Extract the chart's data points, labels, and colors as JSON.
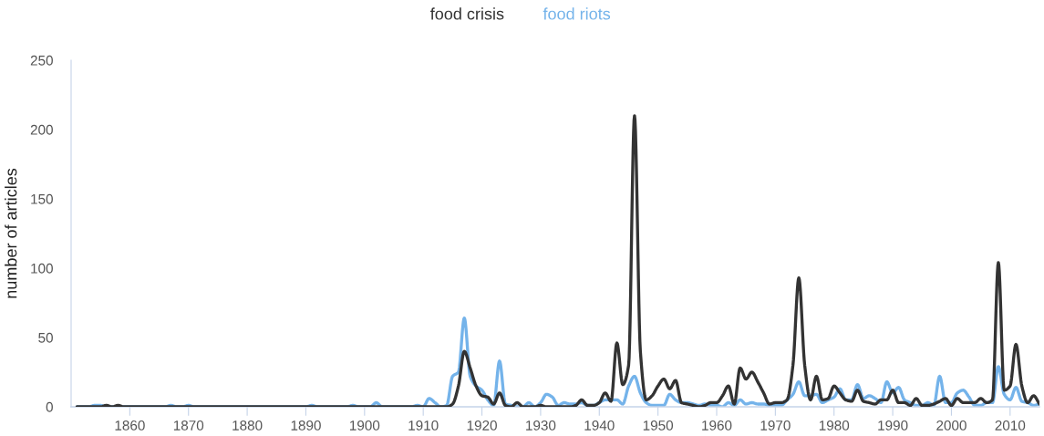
{
  "chart_data": {
    "type": "line",
    "ylabel": "number of articles",
    "legend": "top",
    "grid": false,
    "marker": "none",
    "line_style": "solid",
    "xlim": [
      1850,
      2015
    ],
    "xticks": [
      1860,
      1870,
      1880,
      1890,
      1900,
      1910,
      1920,
      1930,
      1940,
      1950,
      1960,
      1970,
      1980,
      1990,
      2000,
      2010
    ],
    "ylim": [
      0,
      250
    ],
    "yticks": [
      0,
      50,
      100,
      150,
      200,
      250
    ],
    "x": [
      1851,
      1852,
      1853,
      1854,
      1855,
      1856,
      1857,
      1858,
      1859,
      1860,
      1861,
      1862,
      1863,
      1864,
      1865,
      1866,
      1867,
      1868,
      1869,
      1870,
      1871,
      1872,
      1873,
      1874,
      1875,
      1876,
      1877,
      1878,
      1879,
      1880,
      1881,
      1882,
      1883,
      1884,
      1885,
      1886,
      1887,
      1888,
      1889,
      1890,
      1891,
      1892,
      1893,
      1894,
      1895,
      1896,
      1897,
      1898,
      1899,
      1900,
      1901,
      1902,
      1903,
      1904,
      1905,
      1906,
      1907,
      1908,
      1909,
      1910,
      1911,
      1912,
      1913,
      1914,
      1915,
      1916,
      1917,
      1918,
      1919,
      1920,
      1921,
      1922,
      1923,
      1924,
      1925,
      1926,
      1927,
      1928,
      1929,
      1930,
      1931,
      1932,
      1933,
      1934,
      1935,
      1936,
      1937,
      1938,
      1939,
      1940,
      1941,
      1942,
      1943,
      1944,
      1945,
      1946,
      1947,
      1948,
      1949,
      1950,
      1951,
      1952,
      1953,
      1954,
      1955,
      1956,
      1957,
      1958,
      1959,
      1960,
      1961,
      1962,
      1963,
      1964,
      1965,
      1966,
      1967,
      1968,
      1969,
      1970,
      1971,
      1972,
      1973,
      1974,
      1975,
      1976,
      1977,
      1978,
      1979,
      1980,
      1981,
      1982,
      1983,
      1984,
      1985,
      1986,
      1987,
      1988,
      1989,
      1990,
      1991,
      1992,
      1993,
      1994,
      1995,
      1996,
      1997,
      1998,
      1999,
      2000,
      2001,
      2002,
      2003,
      2004,
      2005,
      2006,
      2007,
      2008,
      2009,
      2010,
      2011,
      2012,
      2013,
      2014,
      2015
    ],
    "series": [
      {
        "name": "food crisis",
        "color": "#333333",
        "values": [
          0,
          0,
          0,
          0,
          0,
          1,
          0,
          1,
          0,
          0,
          0,
          0,
          0,
          0,
          0,
          0,
          0,
          0,
          0,
          0,
          0,
          0,
          0,
          0,
          0,
          0,
          0,
          0,
          0,
          0,
          0,
          0,
          0,
          0,
          0,
          0,
          0,
          0,
          0,
          0,
          0,
          0,
          0,
          0,
          0,
          0,
          0,
          0,
          0,
          0,
          0,
          0,
          0,
          0,
          0,
          0,
          0,
          0,
          0,
          0,
          0,
          0,
          0,
          0,
          2,
          15,
          40,
          28,
          15,
          8,
          7,
          2,
          10,
          1,
          0,
          3,
          0,
          0,
          0,
          1,
          0,
          0,
          0,
          0,
          0,
          1,
          5,
          1,
          1,
          3,
          10,
          4,
          46,
          16,
          30,
          210,
          40,
          5,
          8,
          15,
          20,
          13,
          19,
          3,
          2,
          1,
          0,
          1,
          3,
          3,
          8,
          15,
          2,
          28,
          20,
          25,
          18,
          10,
          2,
          3,
          3,
          5,
          30,
          93,
          30,
          5,
          22,
          5,
          6,
          15,
          10,
          5,
          4,
          12,
          4,
          3,
          2,
          5,
          5,
          12,
          3,
          3,
          1,
          6,
          1,
          1,
          2,
          4,
          6,
          1,
          6,
          3,
          3,
          3,
          6,
          3,
          5,
          104,
          12,
          15,
          45,
          15,
          3,
          8,
          2
        ]
      },
      {
        "name": "food riots",
        "color": "#74b3ea",
        "values": [
          0,
          0,
          0,
          1,
          1,
          0,
          0,
          0,
          0,
          0,
          0,
          0,
          0,
          0,
          0,
          0,
          1,
          0,
          0,
          1,
          0,
          0,
          0,
          0,
          0,
          0,
          0,
          0,
          0,
          0,
          0,
          0,
          0,
          0,
          0,
          0,
          0,
          0,
          0,
          0,
          1,
          0,
          0,
          0,
          0,
          0,
          0,
          1,
          0,
          0,
          0,
          3,
          0,
          0,
          0,
          0,
          0,
          0,
          1,
          0,
          6,
          3,
          0,
          1,
          22,
          25,
          64,
          22,
          15,
          12,
          5,
          1,
          33,
          2,
          1,
          0,
          0,
          3,
          0,
          3,
          9,
          7,
          1,
          3,
          2,
          2,
          3,
          1,
          1,
          3,
          5,
          5,
          5,
          2,
          15,
          22,
          10,
          3,
          1,
          1,
          1,
          9,
          5,
          3,
          3,
          2,
          1,
          2,
          1,
          1,
          0,
          3,
          1,
          5,
          2,
          3,
          2,
          2,
          1,
          1,
          1,
          5,
          9,
          18,
          8,
          8,
          9,
          3,
          5,
          7,
          13,
          5,
          5,
          16,
          6,
          8,
          6,
          3,
          18,
          10,
          14,
          5,
          3,
          1,
          1,
          3,
          1,
          22,
          3,
          3,
          10,
          12,
          7,
          1,
          1,
          3,
          3,
          29,
          9,
          5,
          14,
          4,
          3,
          1,
          2
        ]
      }
    ]
  }
}
